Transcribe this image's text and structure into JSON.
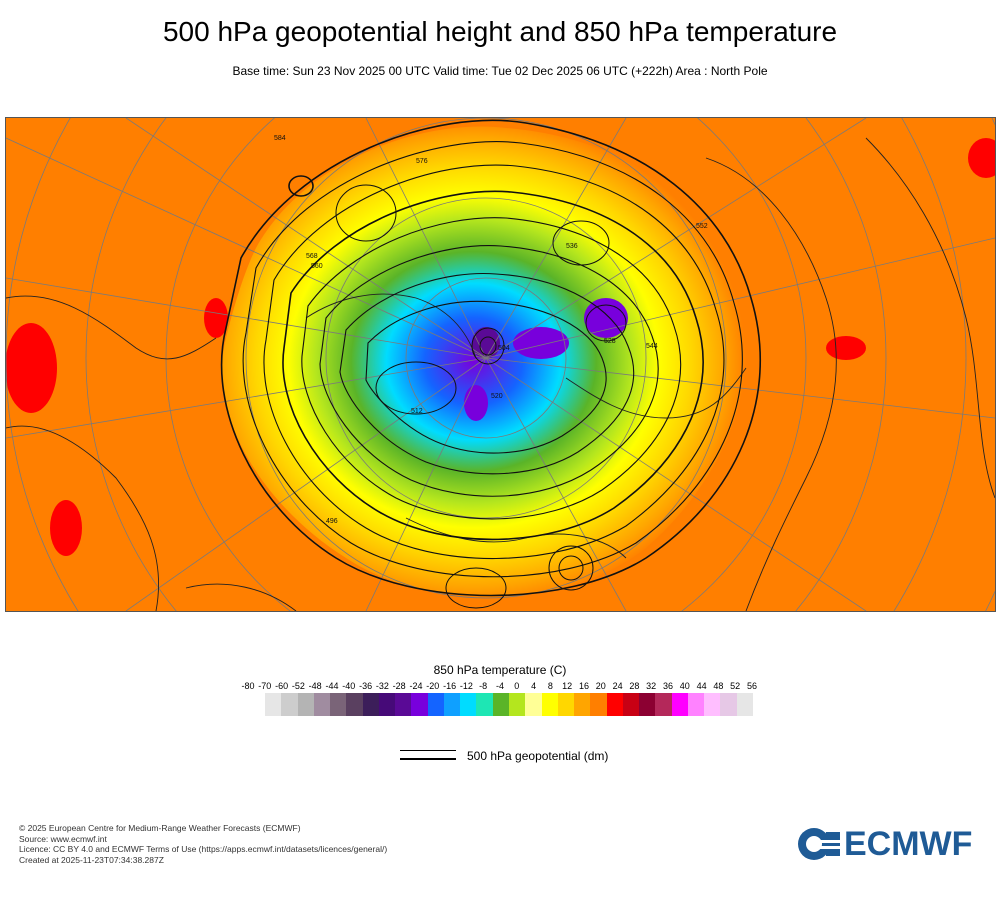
{
  "header": {
    "title": "500 hPa geopotential height and 850 hPa temperature",
    "subtitle": "Base time: Sun 23 Nov 2025 00 UTC Valid time: Tue 02 Dec 2025 06 UTC (+222h) Area : North Pole"
  },
  "map": {
    "contour_labels": [
      "584",
      "576",
      "568",
      "560",
      "552",
      "544",
      "536",
      "528",
      "520",
      "512",
      "504",
      "496"
    ]
  },
  "legend": {
    "title": "850 hPa temperature (C)",
    "ticks": [
      "-80",
      "-70",
      "-60",
      "-52",
      "-48",
      "-44",
      "-40",
      "-36",
      "-32",
      "-28",
      "-24",
      "-20",
      "-16",
      "-12",
      "-8",
      "-4",
      "0",
      "4",
      "8",
      "12",
      "16",
      "20",
      "24",
      "28",
      "32",
      "36",
      "40",
      "44",
      "48",
      "52",
      "56"
    ],
    "colors": [
      "#e6e6e6",
      "#cdcdcd",
      "#b4b4b4",
      "#a08ca0",
      "#7a6478",
      "#5a4060",
      "#3c1e5a",
      "#460a78",
      "#5a0a96",
      "#7800dc",
      "#1464ff",
      "#0fa0ff",
      "#00dcff",
      "#1ee6b4",
      "#5ab428",
      "#b4e61e",
      "#ffff96",
      "#ffff00",
      "#ffd700",
      "#ffa500",
      "#ff7f00",
      "#ff0000",
      "#c80014",
      "#8c0032",
      "#b4285a",
      "#ff00ff",
      "#ff82ff",
      "#ffbeff",
      "#e6c8e6",
      "#e6e6e6"
    ],
    "geo_label": "500 hPa geopotential (dm)"
  },
  "footer": {
    "line1": "© 2025 European Centre for Medium-Range Weather Forecasts (ECMWF)",
    "line2": "Source: www.ecmwf.int",
    "line3": "Licence: CC BY 4.0 and ECMWF Terms of Use (https://apps.ecmwf.int/datasets/licences/general/)",
    "line4": "Created at 2025-11-23T07:34:38.287Z"
  },
  "logo": {
    "text": "ECMWF",
    "color": "#1f5b96"
  }
}
